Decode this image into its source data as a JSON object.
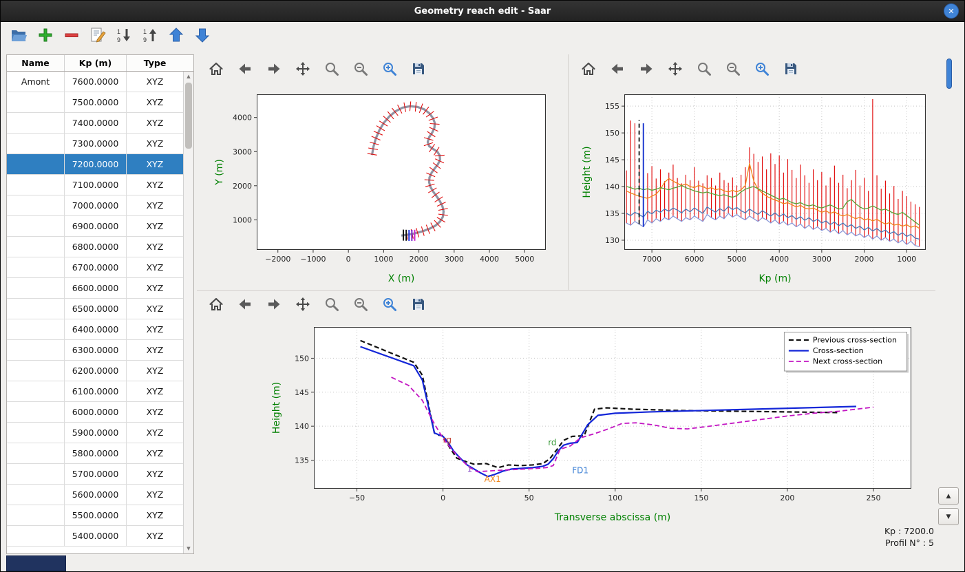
{
  "window": {
    "title": "Geometry reach edit - Saar"
  },
  "main_toolbar": {
    "icons": [
      "open-folder-icon",
      "add-icon",
      "remove-icon",
      "edit-icon",
      "sort-descending-icon",
      "sort-ascending-icon",
      "move-up-icon",
      "move-down-icon"
    ]
  },
  "mpl_toolbar": {
    "icons": [
      "home-icon",
      "back-icon",
      "forward-icon",
      "pan-icon",
      "zoom-icon",
      "zoom-out-icon",
      "zoom-in-icon",
      "save-icon"
    ]
  },
  "table": {
    "columns": [
      "Name",
      "Kp (m)",
      "Type"
    ],
    "selected_index": 4,
    "rows": [
      [
        "Amont",
        "7600.0000",
        "XYZ"
      ],
      [
        "",
        "7500.0000",
        "XYZ"
      ],
      [
        "",
        "7400.0000",
        "XYZ"
      ],
      [
        "",
        "7300.0000",
        "XYZ"
      ],
      [
        "",
        "7200.0000",
        "XYZ"
      ],
      [
        "",
        "7100.0000",
        "XYZ"
      ],
      [
        "",
        "7000.0000",
        "XYZ"
      ],
      [
        "",
        "6900.0000",
        "XYZ"
      ],
      [
        "",
        "6800.0000",
        "XYZ"
      ],
      [
        "",
        "6700.0000",
        "XYZ"
      ],
      [
        "",
        "6600.0000",
        "XYZ"
      ],
      [
        "",
        "6500.0000",
        "XYZ"
      ],
      [
        "",
        "6400.0000",
        "XYZ"
      ],
      [
        "",
        "6300.0000",
        "XYZ"
      ],
      [
        "",
        "6200.0000",
        "XYZ"
      ],
      [
        "",
        "6100.0000",
        "XYZ"
      ],
      [
        "",
        "6000.0000",
        "XYZ"
      ],
      [
        "",
        "5900.0000",
        "XYZ"
      ],
      [
        "",
        "5800.0000",
        "XYZ"
      ],
      [
        "",
        "5700.0000",
        "XYZ"
      ],
      [
        "",
        "5600.0000",
        "XYZ"
      ],
      [
        "",
        "5500.0000",
        "XYZ"
      ],
      [
        "",
        "5400.0000",
        "XYZ"
      ]
    ]
  },
  "status": {
    "kp": "Kp : 7200.0",
    "profil": "Profil N° : 5"
  },
  "chart_data": [
    {
      "id": "plan-view",
      "type": "line",
      "title": "",
      "xlabel": "X (m)",
      "ylabel": "Y (m)",
      "xlim": [
        -2600,
        5600
      ],
      "ylim": [
        120,
        4680
      ],
      "xticks": [
        -2000,
        -1000,
        0,
        1000,
        2000,
        3000,
        4000,
        5000
      ],
      "yticks": [
        1000,
        2000,
        3000,
        4000
      ],
      "grid": false,
      "centerline": {
        "color": "#9094a4",
        "cross_tick_color": "#e01010",
        "x": [
          1500,
          1650,
          1800,
          1950,
          2120,
          2300,
          2470,
          2600,
          2680,
          2700,
          2670,
          2600,
          2510,
          2410,
          2330,
          2290,
          2300,
          2360,
          2450,
          2540,
          2600,
          2590,
          2520,
          2400,
          2290,
          2250,
          2290,
          2380,
          2440,
          2450,
          2400,
          2300,
          2150,
          1960,
          1750,
          1540,
          1350,
          1170,
          1010,
          880,
          780,
          710,
          670
        ],
        "y": [
          540,
          560,
          585,
          620,
          670,
          740,
          830,
          950,
          1090,
          1240,
          1390,
          1540,
          1680,
          1820,
          1960,
          2100,
          2240,
          2380,
          2510,
          2630,
          2760,
          2890,
          3000,
          3080,
          3160,
          3280,
          3420,
          3560,
          3700,
          3840,
          3980,
          4120,
          4240,
          4310,
          4330,
          4290,
          4190,
          4040,
          3850,
          3630,
          3390,
          3140,
          2900
        ]
      },
      "start_markers": [
        {
          "x": 1560,
          "y": 552,
          "color": "#111111"
        },
        {
          "x": 1640,
          "y": 548,
          "color": "#111111"
        },
        {
          "x": 1720,
          "y": 545,
          "color": "#2233dd"
        },
        {
          "x": 1800,
          "y": 545,
          "color": "#7722cc"
        },
        {
          "x": 1880,
          "y": 548,
          "color": "#cc22cc"
        }
      ]
    },
    {
      "id": "longitudinal-profile",
      "type": "line",
      "title": "",
      "xlabel": "Kp (m)",
      "ylabel": "Height (m)",
      "xlim": [
        7650,
        550
      ],
      "ylim": [
        128.2,
        157.2
      ],
      "xticks": [
        7000,
        6000,
        5000,
        4000,
        3000,
        2000,
        1000
      ],
      "yticks": [
        130,
        135,
        140,
        145,
        150,
        155
      ],
      "grid": true,
      "bars_color": "#e00000",
      "bottom_line_color": "#8c99d8",
      "kp": [
        7600,
        7500,
        7400,
        7300,
        7200,
        7100,
        7000,
        6900,
        6800,
        6700,
        6600,
        6500,
        6400,
        6300,
        6200,
        6100,
        6000,
        5900,
        5800,
        5700,
        5600,
        5500,
        5400,
        5300,
        5200,
        5100,
        5000,
        4900,
        4800,
        4700,
        4600,
        4500,
        4400,
        4300,
        4200,
        4100,
        4000,
        3900,
        3800,
        3700,
        3600,
        3500,
        3400,
        3300,
        3200,
        3100,
        3000,
        2900,
        2800,
        2700,
        2600,
        2500,
        2400,
        2300,
        2200,
        2100,
        2000,
        1900,
        1800,
        1700,
        1600,
        1500,
        1400,
        1300,
        1200,
        1100,
        1000,
        900,
        800,
        700
      ],
      "cross_section_tops": [
        143.0,
        152.3,
        151.8,
        144.0,
        144.5,
        142.5,
        143.8,
        141.5,
        143.2,
        141.0,
        142.6,
        144.1,
        141.6,
        140.6,
        142.2,
        141.2,
        143.6,
        141.1,
        140.6,
        142.1,
        141.6,
        140.2,
        142.6,
        141.2,
        140.7,
        141.7,
        140.2,
        142.2,
        143.6,
        147.3,
        146.1,
        144.6,
        145.6,
        143.2,
        146.2,
        144.2,
        145.8,
        142.6,
        145.1,
        143.1,
        141.6,
        144.1,
        142.1,
        140.7,
        143.2,
        141.2,
        142.7,
        140.2,
        141.7,
        143.9,
        140.7,
        142.2,
        139.7,
        141.2,
        143.1,
        140.2,
        141.6,
        139.2,
        156.3,
        142.1,
        139.6,
        141.1,
        138.7,
        140.1,
        137.7,
        139.2,
        138.2,
        137.2,
        136.7,
        136.2
      ],
      "cross_section_bottoms": [
        133.2,
        132.8,
        133.5,
        133.0,
        132.5,
        133.8,
        133.2,
        134.0,
        133.5,
        134.2,
        133.8,
        134.5,
        134.0,
        133.5,
        134.2,
        133.8,
        134.5,
        134.0,
        133.5,
        134.8,
        134.2,
        133.8,
        134.5,
        134.0,
        135.0,
        134.3,
        134.8,
        134.2,
        133.8,
        134.5,
        134.0,
        133.5,
        134.2,
        133.8,
        133.2,
        133.8,
        133.0,
        133.5,
        132.8,
        133.2,
        132.5,
        133.0,
        132.2,
        132.8,
        132.0,
        132.5,
        131.8,
        132.2,
        131.5,
        132.0,
        131.2,
        131.8,
        131.0,
        131.5,
        130.8,
        131.2,
        130.5,
        131.0,
        130.2,
        130.8,
        130.0,
        130.5,
        129.8,
        130.2,
        129.5,
        130.0,
        129.2,
        129.8,
        129.0,
        128.8
      ],
      "series": [
        {
          "name": "series-orange",
          "color": "#f08418",
          "values": [
            139.2,
            138.8,
            138.5,
            138.2,
            138.0,
            137.8,
            138.2,
            138.6,
            139.5,
            140.8,
            141.5,
            141.0,
            140.6,
            140.2,
            140.5,
            140.0,
            139.8,
            140.2,
            140.0,
            139.6,
            139.8,
            139.4,
            139.6,
            139.2,
            139.0,
            139.3,
            139.0,
            139.4,
            140.2,
            144.3,
            141.0,
            139.5,
            138.8,
            138.2,
            137.8,
            137.5,
            137.2,
            136.8,
            137.0,
            136.6,
            136.2,
            136.5,
            136.0,
            135.8,
            136.0,
            135.6,
            135.2,
            135.5,
            135.0,
            135.3,
            134.8,
            134.5,
            134.8,
            134.4,
            134.0,
            134.3,
            133.8,
            134.0,
            133.6,
            133.9,
            133.4,
            133.0,
            133.3,
            132.8,
            133.0,
            132.6,
            132.9,
            132.4,
            132.7,
            132.2
          ]
        },
        {
          "name": "series-green",
          "color": "#58a438",
          "values": [
            140.0,
            139.8,
            139.5,
            139.7,
            139.4,
            139.6,
            139.3,
            139.5,
            139.8,
            139.6,
            139.4,
            139.7,
            139.9,
            140.2,
            139.8,
            139.5,
            139.2,
            139.0,
            138.8,
            139.0,
            138.7,
            138.5,
            138.3,
            138.5,
            138.2,
            138.0,
            138.3,
            139.0,
            139.5,
            139.8,
            140.0,
            139.6,
            139.2,
            138.8,
            138.4,
            138.0,
            137.6,
            137.8,
            137.4,
            137.0,
            136.8,
            137.0,
            136.6,
            136.4,
            136.6,
            136.2,
            136.0,
            136.3,
            136.6,
            136.2,
            135.8,
            136.0,
            137.2,
            137.6,
            136.8,
            136.2,
            135.8,
            136.0,
            136.4,
            136.0,
            135.6,
            135.8,
            135.4,
            135.0,
            134.8,
            135.2,
            134.6,
            134.0,
            133.4,
            132.8
          ]
        },
        {
          "name": "series-steelblue",
          "color": "#4a79b8",
          "values": [
            135.0,
            134.6,
            135.2,
            134.8,
            134.3,
            135.4,
            134.9,
            135.6,
            135.2,
            135.8,
            135.4,
            136.0,
            135.6,
            135.1,
            135.8,
            135.3,
            136.0,
            135.5,
            135.0,
            136.2,
            135.7,
            135.2,
            135.9,
            135.4,
            136.3,
            135.7,
            136.1,
            135.5,
            135.1,
            135.8,
            135.3,
            134.8,
            135.5,
            135.0,
            134.5,
            135.1,
            134.4,
            134.9,
            134.2,
            134.6,
            133.9,
            134.4,
            133.7,
            134.2,
            133.5,
            133.9,
            133.2,
            133.6,
            132.9,
            133.4,
            132.7,
            133.2,
            132.5,
            132.9,
            132.2,
            132.6,
            131.9,
            132.4,
            131.7,
            132.2,
            131.5,
            131.9,
            131.2,
            131.6,
            130.9,
            131.4,
            130.7,
            131.1,
            130.4,
            130.2
          ]
        }
      ],
      "markers": [
        {
          "name": "previous-cross-section-marker",
          "kp": 7300,
          "from": 133.0,
          "to": 152.4,
          "color": "#111111",
          "dash": true
        },
        {
          "name": "current-cross-section-marker",
          "kp": 7200,
          "from": 132.5,
          "to": 151.8,
          "color": "#1f3bd0",
          "dash": false
        }
      ]
    },
    {
      "id": "cross-section-editor",
      "type": "line",
      "title": "",
      "xlabel": "Transverse abscissa (m)",
      "ylabel": "Height (m)",
      "xlim": [
        -75,
        272
      ],
      "ylim": [
        130.8,
        154.6
      ],
      "xticks": [
        -50,
        0,
        50,
        100,
        150,
        200,
        250
      ],
      "yticks": [
        135,
        140,
        145,
        150
      ],
      "grid": true,
      "legend": {
        "position": "upper-right",
        "entries": [
          "Previous cross-section",
          "Cross-section",
          "Next cross-section"
        ]
      },
      "series": [
        {
          "name": "Previous cross-section",
          "color": "#111111",
          "dash": [
            7,
            4
          ],
          "width": 2.2,
          "x": [
            -48,
            -17,
            -12,
            -5,
            -3,
            0,
            4,
            8,
            12,
            18,
            25,
            32,
            38,
            45,
            52,
            58,
            62,
            66,
            70,
            75,
            82,
            88,
            95,
            110,
            140,
            170,
            200,
            230
          ],
          "y": [
            152.6,
            149.4,
            147.5,
            139.0,
            138.7,
            138.6,
            136.8,
            135.3,
            134.9,
            134.4,
            134.5,
            133.9,
            134.3,
            134.2,
            134.3,
            134.5,
            135.2,
            136.5,
            137.9,
            138.5,
            138.6,
            142.5,
            142.7,
            142.5,
            142.3,
            142.2,
            142.1,
            142.0
          ]
        },
        {
          "name": "Cross-section",
          "color": "#1326d8",
          "dash": null,
          "width": 2.2,
          "x": [
            -48,
            -17,
            -12,
            -5,
            0,
            3,
            6,
            10,
            14,
            18,
            22,
            26,
            30,
            35,
            40,
            46,
            52,
            58,
            61,
            64,
            67,
            70,
            74,
            78,
            84,
            90,
            100,
            120,
            150,
            180,
            210,
            240
          ],
          "y": [
            151.7,
            148.9,
            146.8,
            139.0,
            138.5,
            137.6,
            136.4,
            135.3,
            134.3,
            133.7,
            133.1,
            132.6,
            132.9,
            133.4,
            133.7,
            133.8,
            133.9,
            134.1,
            134.4,
            135.2,
            136.4,
            137.2,
            137.5,
            137.6,
            140.2,
            141.6,
            141.9,
            142.1,
            142.3,
            142.5,
            142.7,
            142.9
          ]
        },
        {
          "name": "Next cross-section",
          "color": "#c215c2",
          "dash": [
            7,
            4
          ],
          "width": 1.8,
          "x": [
            -30,
            -20,
            -12,
            -6,
            0,
            5,
            10,
            15,
            20,
            26,
            32,
            40,
            48,
            55,
            60,
            64,
            68,
            74,
            80,
            88,
            96,
            104,
            112,
            122,
            132,
            142,
            155,
            170,
            185,
            200,
            215,
            230,
            250
          ],
          "y": [
            147.2,
            146.0,
            143.8,
            140.8,
            138.2,
            136.6,
            135.2,
            134.0,
            133.3,
            133.4,
            133.5,
            133.6,
            133.7,
            133.8,
            133.9,
            134.2,
            136.6,
            137.1,
            138.3,
            138.9,
            139.6,
            140.4,
            140.5,
            140.2,
            139.7,
            139.6,
            140.0,
            140.5,
            141.0,
            141.5,
            141.9,
            142.2,
            142.8
          ]
        }
      ],
      "annotations": [
        {
          "text": "rg",
          "x": 0,
          "y": 137.6,
          "color": "#c03a2b"
        },
        {
          "text": "rd",
          "x": 61,
          "y": 137.2,
          "color": "#3d9c3d"
        },
        {
          "text": "FD1",
          "x": 75,
          "y": 133.1,
          "color": "#3b7fd4"
        },
        {
          "text": "AX1",
          "x": 24,
          "y": 131.8,
          "color": "#f08418"
        },
        {
          "text": "1",
          "x": 14,
          "y": 133.3,
          "color": "#8a4fc8"
        }
      ]
    }
  ]
}
